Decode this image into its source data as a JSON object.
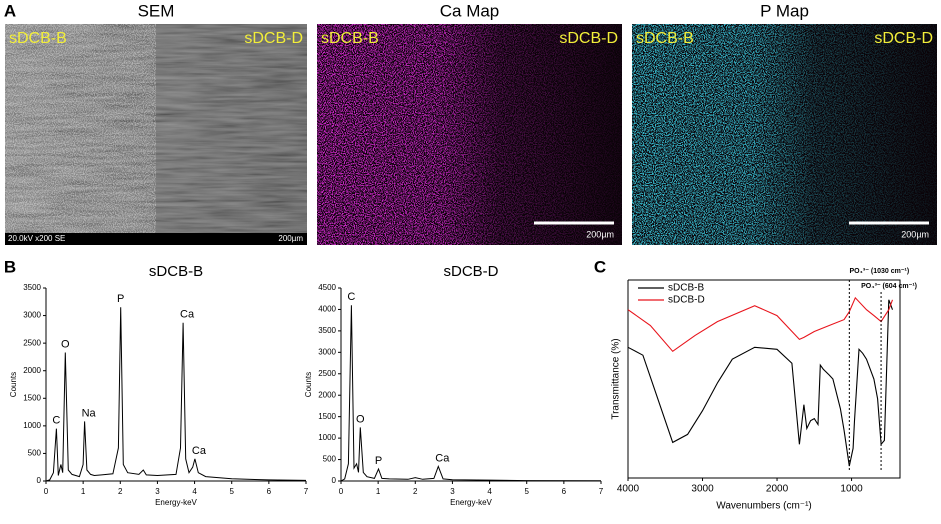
{
  "panel_labels": [
    "A",
    "B",
    "C"
  ],
  "panel_a": {
    "images": [
      {
        "title": "SEM",
        "left_label": "sDCB-B",
        "right_label": "sDCB-D",
        "scale": "200µm",
        "info": "20.0kV x200 SE"
      },
      {
        "title": "Ca Map",
        "left_label": "sDCB-B",
        "right_label": "sDCB-D",
        "scale": "200µm"
      },
      {
        "title": "P Map",
        "left_label": "sDCB-B",
        "right_label": "sDCB-D",
        "scale": "200µm"
      }
    ]
  },
  "chart_data": [
    {
      "type": "line",
      "title": "sDCB-B",
      "xlabel": "Energy-keV",
      "ylabel": "Counts",
      "color": "#000000",
      "x": [
        0,
        0.1,
        0.2,
        0.28,
        0.33,
        0.4,
        0.45,
        0.52,
        0.6,
        0.7,
        0.9,
        1.0,
        1.04,
        1.1,
        1.2,
        1.3,
        1.5,
        1.8,
        1.95,
        2.01,
        2.08,
        2.2,
        2.5,
        2.62,
        2.7,
        3.0,
        3.5,
        3.62,
        3.69,
        3.76,
        3.85,
        3.95,
        4.01,
        4.1,
        4.3,
        5.0,
        6.0,
        7.0
      ],
      "values": [
        0,
        20,
        150,
        950,
        100,
        300,
        150,
        2330,
        200,
        120,
        80,
        300,
        1080,
        200,
        120,
        100,
        110,
        130,
        600,
        3150,
        300,
        150,
        120,
        200,
        110,
        100,
        120,
        600,
        2870,
        400,
        150,
        250,
        400,
        150,
        80,
        40,
        20,
        10
      ],
      "xlim": [
        0,
        7
      ],
      "ylim": [
        0,
        3500
      ],
      "xticks": [
        0,
        1,
        2,
        3,
        4,
        5,
        6,
        7
      ],
      "yticks": [
        0,
        500,
        1000,
        1500,
        2000,
        2500,
        3000,
        3500
      ],
      "annotations": [
        {
          "text": "C",
          "x": 0.28
        },
        {
          "text": "O",
          "x": 0.52
        },
        {
          "text": "Na",
          "x": 1.04
        },
        {
          "text": "P",
          "x": 2.01
        },
        {
          "text": "Ca",
          "x": 3.69
        },
        {
          "text": "Ca",
          "x": 4.01
        }
      ]
    },
    {
      "type": "line",
      "title": "sDCB-D",
      "xlabel": "Energy-keV",
      "ylabel": "Counts",
      "color": "#000000",
      "x": [
        0,
        0.1,
        0.2,
        0.28,
        0.35,
        0.42,
        0.47,
        0.52,
        0.6,
        0.7,
        0.9,
        1.01,
        1.1,
        1.3,
        1.8,
        2.0,
        2.2,
        2.5,
        2.62,
        2.75,
        3.0,
        4.0,
        5.0,
        7.0
      ],
      "values": [
        0,
        50,
        400,
        4100,
        300,
        400,
        200,
        1250,
        200,
        100,
        60,
        280,
        60,
        50,
        40,
        80,
        40,
        60,
        340,
        50,
        30,
        20,
        10,
        5
      ],
      "xlim": [
        0,
        7
      ],
      "ylim": [
        0,
        4500
      ],
      "xticks": [
        0,
        1,
        2,
        3,
        4,
        5,
        6,
        7
      ],
      "yticks": [
        0,
        500,
        1000,
        1500,
        2000,
        2500,
        3000,
        3500,
        4000,
        4500
      ],
      "annotations": [
        {
          "text": "C",
          "x": 0.28
        },
        {
          "text": "O",
          "x": 0.52
        },
        {
          "text": "P",
          "x": 1.01
        },
        {
          "text": "Ca",
          "x": 2.62
        }
      ]
    },
    {
      "type": "line",
      "xlabel": "Wavenumbers (cm⁻¹)",
      "ylabel": "Transmittance (%)",
      "legend": "upper left",
      "xlim": [
        4000,
        350
      ],
      "ylim": [
        0,
        100
      ],
      "xticks": [
        4000,
        3000,
        2000,
        1000
      ],
      "series": [
        {
          "name": "sDCB-B",
          "color": "#000000",
          "x": [
            4000,
            3800,
            3600,
            3400,
            3200,
            3000,
            2800,
            2600,
            2300,
            2000,
            1800,
            1700,
            1640,
            1600,
            1550,
            1500,
            1450,
            1420,
            1380,
            1300,
            1250,
            1150,
            1100,
            1030,
            980,
            960,
            900,
            850,
            800,
            700,
            650,
            604,
            560,
            500,
            450
          ],
          "values": [
            66,
            62,
            40,
            18,
            22,
            34,
            48,
            60,
            66,
            65,
            58,
            17,
            37,
            25,
            29,
            30,
            27,
            57,
            55,
            52,
            50,
            35,
            24,
            6,
            15,
            29,
            65,
            63,
            60,
            50,
            40,
            17,
            19,
            90,
            85
          ]
        },
        {
          "name": "sDCB-D",
          "color": "#e8141c",
          "x": [
            4000,
            3700,
            3400,
            3100,
            2800,
            2300,
            2000,
            1700,
            1640,
            1500,
            1300,
            1100,
            1030,
            950,
            800,
            700,
            604,
            500,
            450
          ],
          "values": [
            85,
            77,
            64,
            72,
            79,
            87,
            82,
            70,
            71,
            74,
            77,
            80,
            84,
            91,
            85,
            82,
            79,
            85,
            90
          ]
        }
      ],
      "annotations": [
        {
          "text": "PO₄³⁻ (1030 cm⁻¹)",
          "x": 1030
        },
        {
          "text": "PO₄³⁻ (604 cm⁻¹)",
          "x": 604
        }
      ]
    }
  ]
}
